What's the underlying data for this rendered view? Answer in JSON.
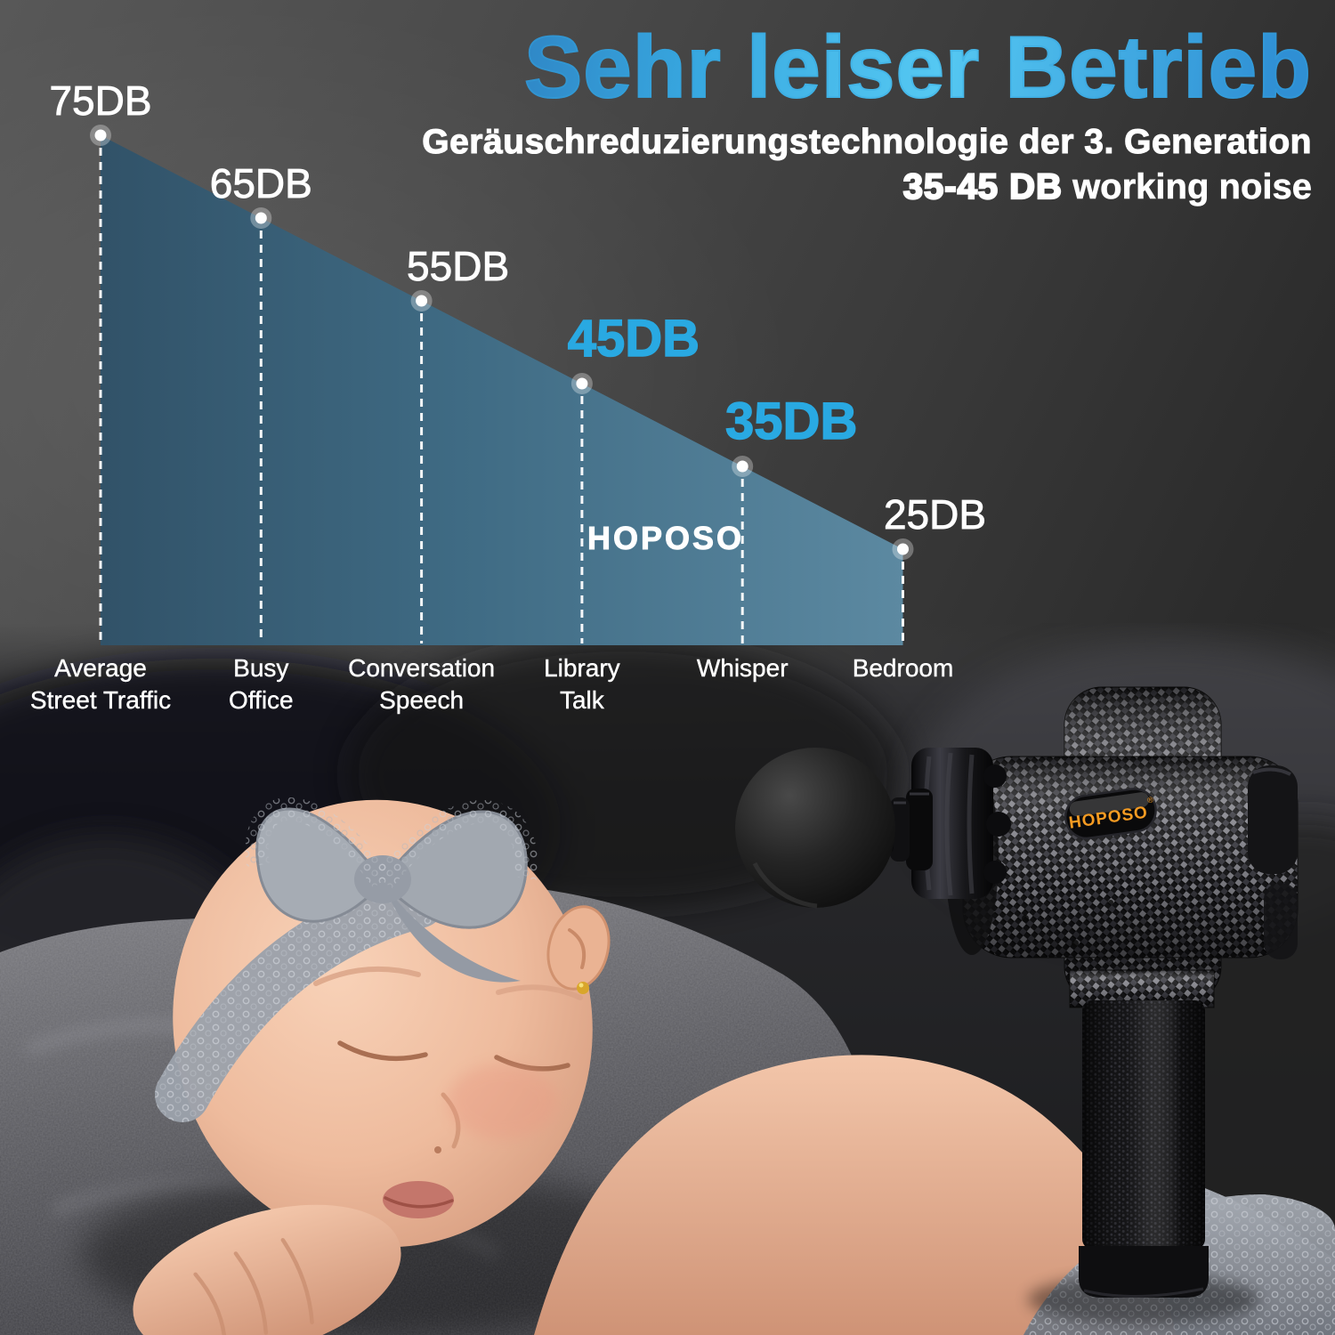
{
  "header": {
    "title": "Sehr leiser Betrieb",
    "subtitle": "Geräuschreduzierungstechnologie der 3. Generation",
    "noise_range": "35-45 DB",
    "noise_suffix": " working noise",
    "title_color_start": "#2c7bbd",
    "title_color_end": "#55c8f2"
  },
  "chart_data": {
    "type": "area",
    "unit": "DB",
    "categories": [
      "Average Street Traffic",
      "Busy Office",
      "Conversation Speech",
      "Library Talk",
      "Whisper",
      "Bedroom"
    ],
    "category_lines": [
      [
        "Average",
        "Street Traffic"
      ],
      [
        "Busy",
        "Office"
      ],
      [
        "Conversation",
        "Speech"
      ],
      [
        "Library",
        "Talk"
      ],
      [
        "Whisper"
      ],
      [
        "Bedroom"
      ]
    ],
    "values": [
      75,
      65,
      55,
      45,
      35,
      25
    ],
    "point_labels": [
      "75DB",
      "65DB",
      "55DB",
      "45DB",
      "35DB",
      "25DB"
    ],
    "highlight": [
      false,
      false,
      false,
      true,
      true,
      false
    ],
    "watermark": "HOPOSO",
    "ylim": [
      0,
      80
    ],
    "grid": false,
    "legend": false,
    "layout": {
      "label_color_normal": "#ffffff",
      "label_color_highlight": "#29a9e2",
      "line_style": "dashed-white-drop-lines-with-dots",
      "fill_gradient": [
        "#315268",
        "#3f6b84",
        "#5c89a1"
      ]
    }
  },
  "product": {
    "badge_text": "HOPOSO",
    "badge_mark": "®",
    "badge_text_color": "#f59b22",
    "description": "massage gun with carbon fiber body, ball attachment and leather grip"
  }
}
